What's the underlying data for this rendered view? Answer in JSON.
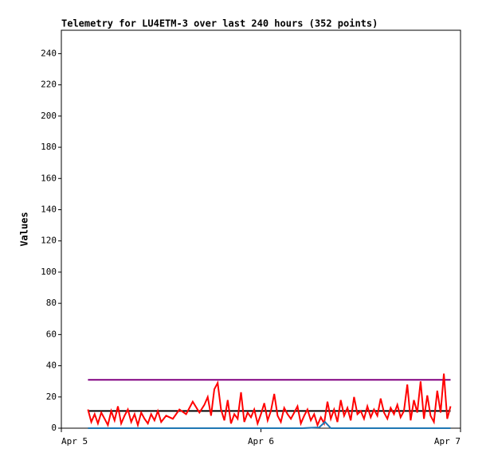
{
  "chart_data": {
    "type": "line",
    "title": "Telemetry for LU4ETM-3 over last 240 hours (352 points)",
    "ylabel": "Values",
    "xlim": [
      0,
      48
    ],
    "xticks": [
      {
        "value": 0,
        "label": "Apr 5"
      },
      {
        "value": 24,
        "label": "Apr 6"
      },
      {
        "value": 48,
        "label": "Apr 7"
      }
    ],
    "ylim": [
      0,
      255
    ],
    "yticks": [
      0,
      20,
      40,
      60,
      80,
      100,
      120,
      140,
      160,
      180,
      200,
      220,
      240
    ],
    "grid": false,
    "series": [
      {
        "color": "#800080",
        "x": [
          3.2,
          46.8
        ],
        "values": [
          31,
          31
        ]
      },
      {
        "color": "#000000",
        "x": [
          3.2,
          46.8
        ],
        "values": [
          11,
          11
        ]
      },
      {
        "color": "#ff0000",
        "x": [
          3.2,
          3.6,
          4.0,
          4.4,
          4.8,
          5.2,
          5.6,
          6.0,
          6.4,
          6.8,
          7.2,
          7.6,
          8.0,
          8.4,
          8.8,
          9.2,
          9.6,
          10.0,
          10.4,
          10.8,
          11.2,
          11.6,
          12.0,
          12.6,
          13.4,
          14.2,
          15.0,
          15.8,
          16.6,
          17.2,
          17.6,
          18.0,
          18.4,
          18.8,
          19.2,
          19.6,
          20.0,
          20.4,
          20.8,
          21.2,
          21.6,
          22.0,
          22.4,
          22.8,
          23.2,
          23.6,
          24.0,
          24.4,
          24.8,
          25.2,
          25.6,
          26.0,
          26.4,
          26.8,
          27.2,
          27.6,
          28.0,
          28.4,
          28.8,
          29.2,
          29.6,
          30.0,
          30.4,
          30.8,
          31.2,
          31.6,
          32.0,
          32.4,
          32.8,
          33.2,
          33.6,
          34.0,
          34.4,
          34.8,
          35.2,
          35.6,
          36.0,
          36.4,
          36.8,
          37.2,
          37.6,
          38.0,
          38.4,
          38.8,
          39.2,
          39.6,
          40.0,
          40.4,
          40.8,
          41.2,
          41.6,
          42.0,
          42.4,
          42.8,
          43.2,
          43.6,
          44.0,
          44.4,
          44.8,
          45.2,
          45.6,
          46.0,
          46.4,
          46.8
        ],
        "values": [
          12,
          4,
          9,
          3,
          10,
          6,
          2,
          11,
          5,
          14,
          3,
          8,
          12,
          4,
          9,
          2,
          10,
          6,
          3,
          9,
          5,
          11,
          4,
          8,
          6,
          12,
          9,
          17,
          10,
          15,
          20,
          8,
          25,
          29,
          12,
          5,
          18,
          3,
          9,
          6,
          23,
          4,
          10,
          7,
          12,
          3,
          9,
          16,
          5,
          11,
          22,
          8,
          4,
          13,
          9,
          6,
          10,
          14,
          3,
          8,
          12,
          5,
          9,
          2,
          7,
          3,
          17,
          6,
          12,
          4,
          18,
          8,
          13,
          5,
          20,
          9,
          11,
          6,
          14,
          7,
          12,
          8,
          19,
          10,
          6,
          13,
          9,
          15,
          7,
          11,
          28,
          5,
          18,
          10,
          30,
          6,
          21,
          8,
          4,
          24,
          10,
          35,
          6,
          14
        ]
      },
      {
        "color": "#1f77b4",
        "x": [
          3.2,
          29.0,
          31.0,
          31.7,
          32.4,
          46.8
        ],
        "values": [
          0,
          0,
          0.5,
          4,
          0,
          0
        ]
      }
    ]
  }
}
